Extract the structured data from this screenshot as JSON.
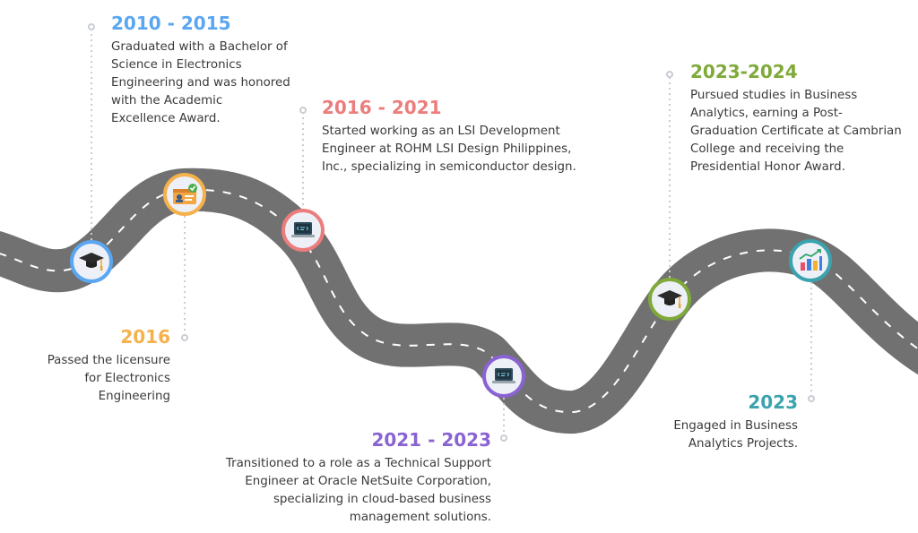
{
  "colors": {
    "road": "#717171",
    "road_dash": "#ffffff",
    "connector": "#c9ccd3",
    "blue": "#5aa6f0",
    "orange": "#f5b14c",
    "red": "#ec7d7d",
    "purple": "#8a63d2",
    "green": "#7faa3a",
    "teal": "#3aa3ae"
  },
  "milestones": [
    {
      "year": "2010 - 2015",
      "description": "Graduated with a Bachelor of Science in Electronics Engineering and was honored with the Academic Excellence Award.",
      "icon": "graduation-cap-icon",
      "color": "#5aa6f0"
    },
    {
      "year": "2016",
      "description": "Passed the licensure for Electronics Engineering",
      "icon": "license-card-icon",
      "color": "#f5b14c"
    },
    {
      "year": "2016 - 2021",
      "description": "Started working as an LSI Development Engineer at ROHM LSI Design Philippines, Inc., specializing in semiconductor design.",
      "icon": "laptop-code-icon",
      "color": "#ec7d7d"
    },
    {
      "year": "2021 - 2023",
      "description": "Transitioned to a role as a Technical Support Engineer at Oracle NetSuite Corporation, specializing in cloud-based business management solutions.",
      "icon": "laptop-code-icon",
      "color": "#8a63d2"
    },
    {
      "year": "2023-2024",
      "description": "Pursued studies in Business Analytics, earning a Post-Graduation Certificate at Cambrian College and receiving the Presidential Honor Award.",
      "icon": "graduation-cap-icon",
      "color": "#7faa3a"
    },
    {
      "year": "2023",
      "description": "Engaged in Business Analytics Projects.",
      "icon": "bar-chart-icon",
      "color": "#3aa3ae"
    }
  ]
}
